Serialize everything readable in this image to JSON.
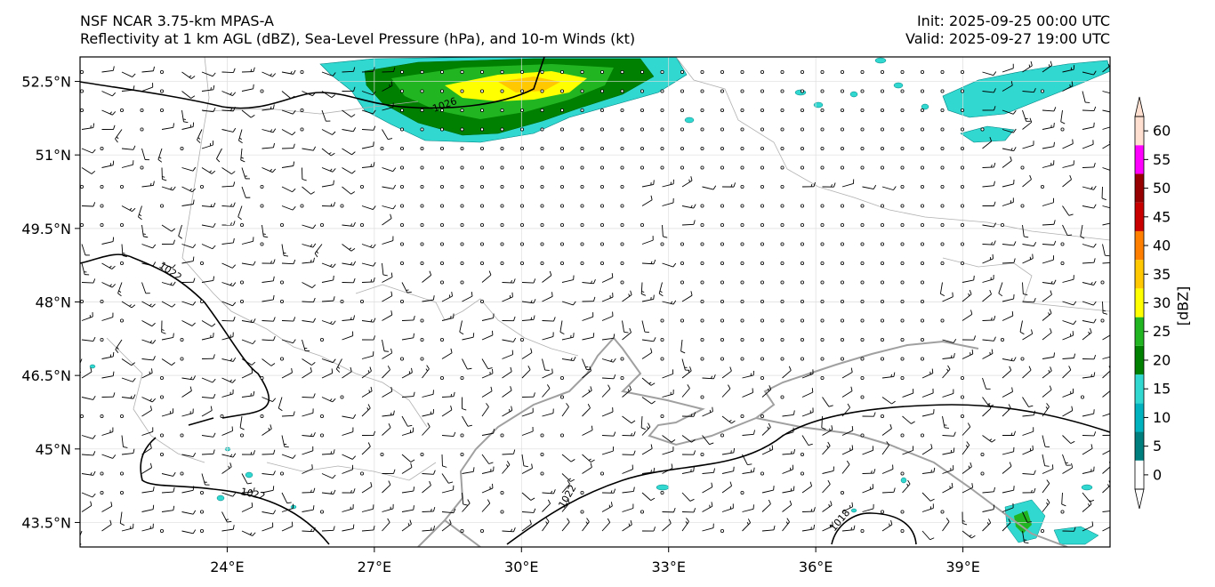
{
  "header": {
    "left_line1": "NSF NCAR 3.75-km MPAS-A",
    "left_line2": "Reflectivity at 1 km AGL (dBZ), Sea-Level Pressure (hPa), and 10-m Winds (kt)",
    "right_line1": "Init: 2025-09-25 00:00 UTC",
    "right_line2": "Valid: 2025-09-27 19:00 UTC"
  },
  "axes": {
    "lon_ticks": [
      "24°E",
      "27°E",
      "30°E",
      "33°E",
      "36°E",
      "39°E"
    ],
    "lat_ticks": [
      "52.5°N",
      "51°N",
      "49.5°N",
      "48°N",
      "46.5°N",
      "45°N",
      "43.5°N"
    ],
    "lon_range": [
      21,
      42
    ],
    "lat_range": [
      43.0,
      53.0
    ],
    "grid": true
  },
  "isobars": {
    "labels": [
      "1026",
      "1022",
      "1022",
      "1022",
      "1018"
    ],
    "color": "#000000"
  },
  "colorbar": {
    "label": "[dBZ]",
    "ticks": [
      "0",
      "5",
      "10",
      "15",
      "20",
      "25",
      "30",
      "35",
      "40",
      "45",
      "50",
      "55",
      "60"
    ],
    "colors": [
      "#ffffff",
      "#007f7f",
      "#00b2be",
      "#30d8d0",
      "#008000",
      "#22b522",
      "#ffff00",
      "#ffc800",
      "#ff8000",
      "#c80000",
      "#960000",
      "#ff00ff",
      "#ffe0d0"
    ]
  }
}
